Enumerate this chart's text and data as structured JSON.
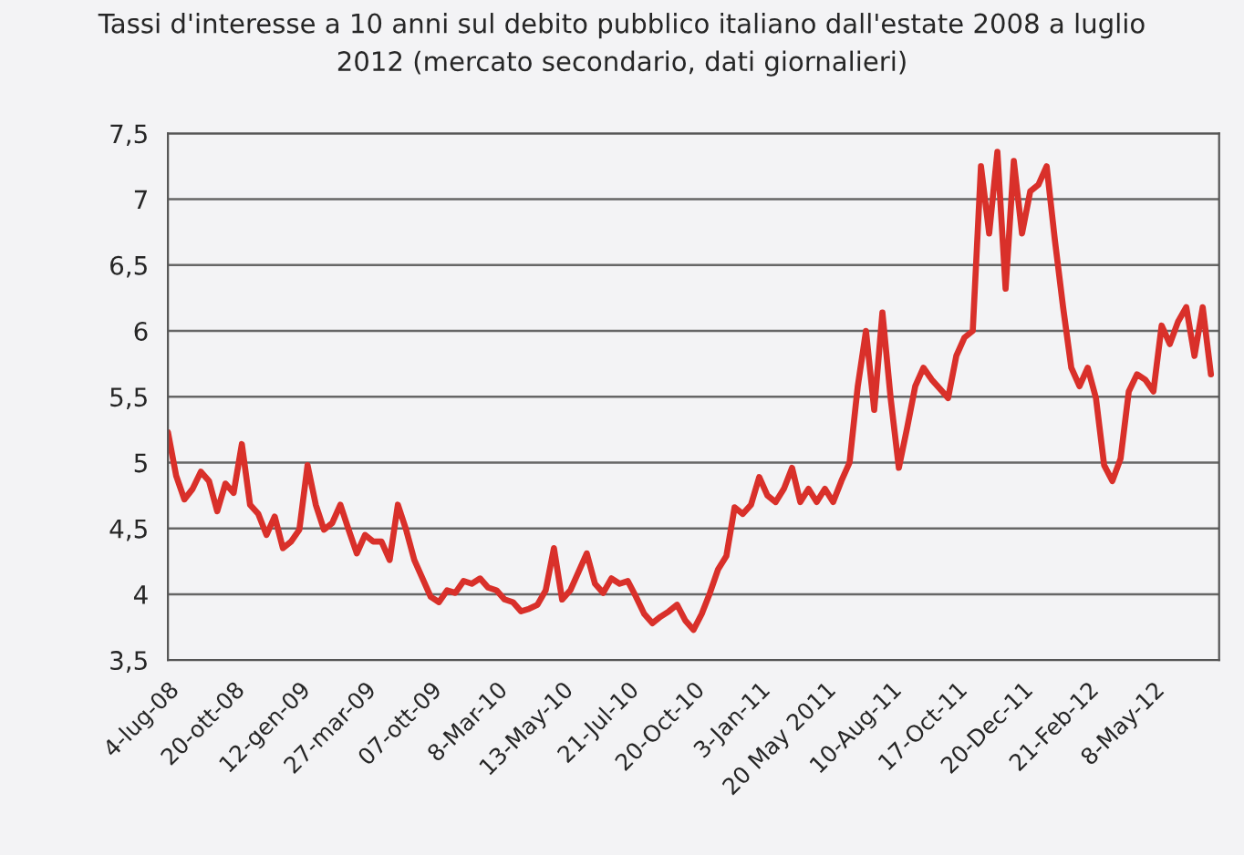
{
  "chart_data": {
    "type": "line",
    "title": "Tassi d'interesse a 10 anni sul debito pubblico italiano dall'estate 2008 a luglio\n2012 (mercato secondario, dati giornalieri)",
    "categories": [
      "4-lug-08",
      null,
      null,
      null,
      null,
      null,
      null,
      null,
      "20-ott-08",
      null,
      null,
      null,
      null,
      null,
      null,
      null,
      "12-gen-09",
      null,
      null,
      null,
      null,
      null,
      null,
      null,
      "27-mar-09",
      null,
      null,
      null,
      null,
      null,
      null,
      null,
      "07-ott-09",
      null,
      null,
      null,
      null,
      null,
      null,
      null,
      "8-Mar-10",
      null,
      null,
      null,
      null,
      null,
      null,
      null,
      "13-May-10",
      null,
      null,
      null,
      null,
      null,
      null,
      null,
      "21-Jul-10",
      null,
      null,
      null,
      null,
      null,
      null,
      null,
      "20-Oct-10",
      null,
      null,
      null,
      null,
      null,
      null,
      null,
      "3-Jan-11",
      null,
      null,
      null,
      null,
      null,
      null,
      null,
      "20 May 2011",
      null,
      null,
      null,
      null,
      null,
      null,
      null,
      "10-Aug-11",
      null,
      null,
      null,
      null,
      null,
      null,
      null,
      "17-Oct-11",
      null,
      null,
      null,
      null,
      null,
      null,
      null,
      "20-Dec-11",
      null,
      null,
      null,
      null,
      null,
      null,
      null,
      "21-Feb-12",
      null,
      null,
      null,
      null,
      null,
      null,
      null,
      "8-May-12",
      null,
      null,
      null,
      null,
      null,
      null,
      null
    ],
    "series": [
      {
        "color": "#d9302a",
        "values": [
          5.23,
          4.9,
          4.72,
          4.8,
          4.93,
          4.86,
          4.63,
          4.84,
          4.77,
          5.14,
          4.68,
          4.61,
          4.45,
          4.59,
          4.35,
          4.4,
          4.49,
          4.98,
          4.68,
          4.49,
          4.54,
          4.68,
          4.49,
          4.31,
          4.45,
          4.4,
          4.4,
          4.26,
          4.68,
          4.49,
          4.26,
          4.12,
          3.98,
          3.94,
          4.03,
          4.01,
          4.1,
          4.08,
          4.12,
          4.05,
          4.03,
          3.96,
          3.94,
          3.87,
          3.89,
          3.92,
          4.03,
          4.35,
          3.96,
          4.03,
          4.17,
          4.31,
          4.08,
          4.01,
          4.12,
          4.08,
          4.1,
          3.98,
          3.85,
          3.78,
          3.83,
          3.87,
          3.92,
          3.8,
          3.73,
          3.85,
          4.01,
          4.19,
          4.29,
          4.66,
          4.61,
          4.68,
          4.89,
          4.75,
          4.7,
          4.8,
          4.96,
          4.7,
          4.8,
          4.7,
          4.8,
          4.7,
          4.86,
          5.0,
          5.58,
          6.0,
          5.4,
          6.14,
          5.49,
          4.96,
          5.26,
          5.58,
          5.72,
          5.63,
          5.56,
          5.49,
          5.81,
          5.95,
          6.0,
          7.25,
          6.74,
          7.36,
          6.32,
          7.29,
          6.74,
          7.06,
          7.11,
          7.25,
          6.69,
          6.18,
          5.72,
          5.58,
          5.72,
          5.49,
          4.98,
          4.86,
          5.03,
          5.54,
          5.67,
          5.63,
          5.54,
          6.04,
          5.9,
          6.07,
          6.18,
          5.81,
          6.18,
          5.67
        ]
      }
    ],
    "ylim": [
      3.5,
      7.5
    ],
    "yticks": [
      {
        "value": 3.5,
        "label": "3,5"
      },
      4,
      {
        "value": 4.5,
        "label": "4,5"
      },
      5,
      {
        "value": 5.5,
        "label": "5,5"
      },
      6,
      {
        "value": 6.5,
        "label": "6,5"
      },
      7,
      {
        "value": 7.5,
        "label": "7,5"
      }
    ],
    "grid": "y",
    "legend": false,
    "marker": "none",
    "line_style": "solid"
  }
}
